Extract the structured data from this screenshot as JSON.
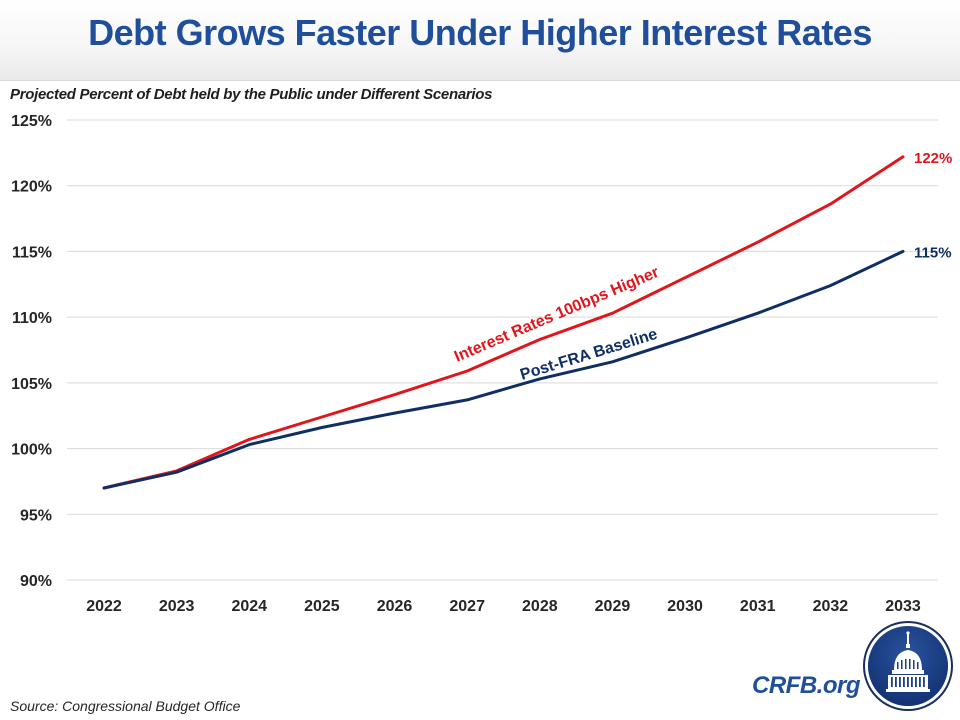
{
  "header": {
    "title": "Debt Grows Faster Under Higher Interest Rates",
    "subtitle": "Projected Percent of Debt held by the Public under Different Scenarios"
  },
  "footer": {
    "source": "Source: Congressional Budget Office",
    "brand": "CRFB.org",
    "logo_icon": "capitol-dome-logo-icon"
  },
  "colors": {
    "title": "#1f4e9a",
    "higher_rates": "#e0161d",
    "baseline": "#0f2f64",
    "grid": "#d9d9d9",
    "logo_bg": "#1a3f86"
  },
  "chart_data": {
    "type": "line",
    "title": "Debt Grows Faster Under Higher Interest Rates",
    "subtitle": "Projected Percent of Debt held by the Public under Different Scenarios",
    "xlabel": "",
    "ylabel": "",
    "x": [
      "2022",
      "2023",
      "2024",
      "2025",
      "2026",
      "2027",
      "2028",
      "2029",
      "2030",
      "2031",
      "2032",
      "2033"
    ],
    "ylim": [
      90,
      125
    ],
    "yticks": [
      90,
      95,
      100,
      105,
      110,
      115,
      120,
      125
    ],
    "ytick_labels": [
      "90%",
      "95%",
      "100%",
      "105%",
      "110%",
      "115%",
      "120%",
      "125%"
    ],
    "grid": true,
    "legend": "none (inline labels on lines)",
    "series": [
      {
        "name": "Interest Rates 100bps Higher",
        "color": "#e0161d",
        "values": [
          97.0,
          98.3,
          100.7,
          102.4,
          104.1,
          105.9,
          108.3,
          110.3,
          113.0,
          115.7,
          118.6,
          122.2
        ],
        "end_label": "122%"
      },
      {
        "name": "Post-FRA Baseline",
        "color": "#0f2f64",
        "values": [
          97.0,
          98.2,
          100.3,
          101.6,
          102.7,
          103.7,
          105.3,
          106.6,
          108.4,
          110.3,
          112.4,
          115.0
        ],
        "end_label": "115%"
      }
    ]
  }
}
